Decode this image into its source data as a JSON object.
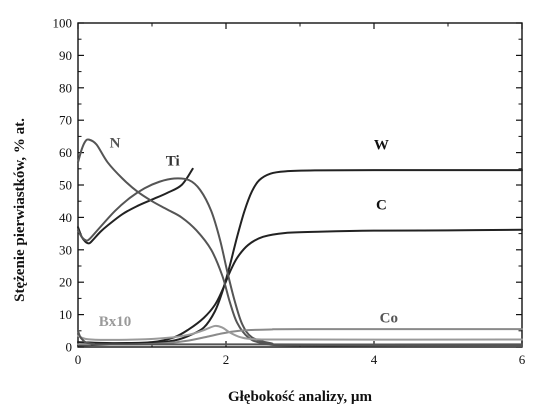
{
  "chart_data": {
    "type": "line",
    "title": "",
    "xlabel": "Głębokość analizy, µm",
    "ylabel": "Stężenie pierwiastków, % at.",
    "xlim": [
      0,
      6
    ],
    "ylim": [
      0,
      100
    ],
    "xticks": [
      "0",
      "2",
      "4",
      "6"
    ],
    "yticks": [
      "0",
      "10",
      "20",
      "30",
      "40",
      "50",
      "60",
      "70",
      "80",
      "90",
      "100"
    ],
    "grid": false,
    "legend": "inline labels",
    "series": [
      {
        "name": "W",
        "color": "#222222",
        "points": [
          [
            0,
            0.5
          ],
          [
            0.5,
            0.8
          ],
          [
            1.0,
            1.2
          ],
          [
            1.3,
            2.0
          ],
          [
            1.5,
            3.5
          ],
          [
            1.7,
            6.0
          ],
          [
            1.85,
            11.0
          ],
          [
            1.95,
            17.0
          ],
          [
            2.05,
            25.0
          ],
          [
            2.15,
            34.0
          ],
          [
            2.25,
            42.0
          ],
          [
            2.35,
            48.0
          ],
          [
            2.45,
            51.5
          ],
          [
            2.6,
            53.5
          ],
          [
            2.8,
            54.2
          ],
          [
            3.2,
            54.5
          ],
          [
            4.0,
            54.6
          ],
          [
            5.0,
            54.6
          ],
          [
            6.0,
            54.6
          ]
        ]
      },
      {
        "name": "C",
        "color": "#222222",
        "points": [
          [
            0,
            37.0
          ],
          [
            0.05,
            34.0
          ],
          [
            0.1,
            32.5
          ],
          [
            0.15,
            32.0
          ],
          [
            0.2,
            33.0
          ],
          [
            0.3,
            35.5
          ],
          [
            0.4,
            37.5
          ],
          [
            0.6,
            41.0
          ],
          [
            0.8,
            43.5
          ],
          [
            1.0,
            45.5
          ],
          [
            1.2,
            47.5
          ],
          [
            1.4,
            50.0
          ],
          [
            1.55,
            55.0
          ]
        ]
      },
      {
        "name": "C",
        "color": "#222222",
        "points": [
          [
            0,
            1.5
          ],
          [
            0.5,
            1.2
          ],
          [
            1.0,
            1.5
          ],
          [
            1.3,
            3.0
          ],
          [
            1.5,
            5.5
          ],
          [
            1.7,
            9.0
          ],
          [
            1.85,
            13.0
          ],
          [
            1.95,
            17.5
          ],
          [
            2.05,
            23.0
          ],
          [
            2.15,
            27.5
          ],
          [
            2.3,
            31.5
          ],
          [
            2.5,
            34.0
          ],
          [
            2.8,
            35.2
          ],
          [
            3.3,
            35.6
          ],
          [
            4.0,
            35.9
          ],
          [
            5.0,
            36.0
          ],
          [
            6.0,
            36.2
          ]
        ]
      },
      {
        "name": "N",
        "color": "#555555",
        "points": [
          [
            0,
            57.0
          ],
          [
            0.05,
            61.0
          ],
          [
            0.1,
            63.5
          ],
          [
            0.15,
            64.0
          ],
          [
            0.25,
            62.5
          ],
          [
            0.4,
            57.0
          ],
          [
            0.6,
            52.0
          ],
          [
            0.8,
            48.0
          ],
          [
            1.0,
            45.0
          ],
          [
            1.2,
            42.5
          ],
          [
            1.4,
            40.0
          ],
          [
            1.6,
            36.0
          ],
          [
            1.8,
            30.0
          ],
          [
            1.95,
            22.0
          ],
          [
            2.05,
            14.0
          ],
          [
            2.15,
            7.5
          ],
          [
            2.3,
            3.0
          ],
          [
            2.5,
            1.2
          ],
          [
            3.0,
            0.5
          ],
          [
            6.0,
            0.3
          ]
        ]
      },
      {
        "name": "Ti",
        "color": "#555555",
        "points": [
          [
            0,
            36.0
          ],
          [
            0.05,
            34.0
          ],
          [
            0.1,
            33.0
          ],
          [
            0.15,
            33.2
          ],
          [
            0.3,
            37.0
          ],
          [
            0.5,
            42.0
          ],
          [
            0.7,
            46.0
          ],
          [
            0.9,
            49.0
          ],
          [
            1.1,
            51.0
          ],
          [
            1.3,
            52.0
          ],
          [
            1.5,
            51.5
          ],
          [
            1.65,
            48.5
          ],
          [
            1.8,
            42.0
          ],
          [
            1.92,
            33.0
          ],
          [
            2.02,
            23.0
          ],
          [
            2.12,
            14.0
          ],
          [
            2.22,
            7.0
          ],
          [
            2.35,
            3.0
          ],
          [
            2.6,
            1.2
          ],
          [
            3.0,
            0.6
          ],
          [
            6.0,
            0.4
          ]
        ]
      },
      {
        "name": "Co",
        "color": "#8a8a8a",
        "points": [
          [
            0,
            0.8
          ],
          [
            0.8,
            0.8
          ],
          [
            1.2,
            1.2
          ],
          [
            1.5,
            2.0
          ],
          [
            1.75,
            3.2
          ],
          [
            1.95,
            4.2
          ],
          [
            2.1,
            4.8
          ],
          [
            2.3,
            5.2
          ],
          [
            2.6,
            5.4
          ],
          [
            3.0,
            5.5
          ],
          [
            6.0,
            5.5
          ]
        ]
      },
      {
        "name": "Bx10",
        "color": "#9a9a9a",
        "points": [
          [
            0,
            3.5
          ],
          [
            0.1,
            2.5
          ],
          [
            0.3,
            2.2
          ],
          [
            0.8,
            2.3
          ],
          [
            1.2,
            2.8
          ],
          [
            1.5,
            3.8
          ],
          [
            1.7,
            5.2
          ],
          [
            1.85,
            6.5
          ],
          [
            1.95,
            6.0
          ],
          [
            2.05,
            4.5
          ],
          [
            2.2,
            3.0
          ],
          [
            2.4,
            2.4
          ],
          [
            3.0,
            2.3
          ],
          [
            6.0,
            2.3
          ]
        ]
      },
      {
        "name": "",
        "color": "#555555",
        "points": [
          [
            0,
            5.0
          ],
          [
            0.05,
            2.5
          ],
          [
            0.2,
            1.0
          ],
          [
            0.8,
            0.8
          ],
          [
            6.0,
            0.8
          ]
        ]
      }
    ],
    "annotations": [
      {
        "text": "N",
        "x": 0.5,
        "y": 61.5,
        "color": "#555555"
      },
      {
        "text": "Ti",
        "x": 1.28,
        "y": 56.0,
        "color": "#333333"
      },
      {
        "text": "W",
        "x": 4.1,
        "y": 61.0,
        "color": "#111111"
      },
      {
        "text": "C",
        "x": 4.1,
        "y": 42.5,
        "color": "#111111"
      },
      {
        "text": "Co",
        "x": 4.2,
        "y": 7.5,
        "color": "#555555"
      },
      {
        "text": "Bx10",
        "x": 0.5,
        "y": 6.5,
        "color": "#9a9a9a"
      }
    ]
  }
}
